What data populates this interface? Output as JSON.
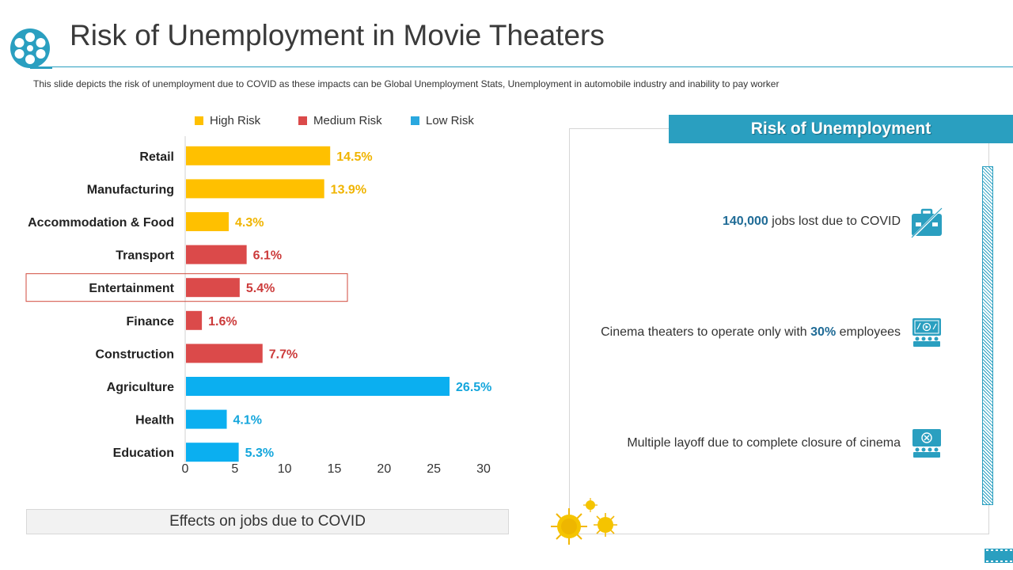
{
  "title": "Risk of Unemployment in Movie Theaters",
  "subtitle": "This slide depicts the risk of unemployment  due to COVID as these impacts can be Global Unemployment Stats, Unemployment in automobile industry and inability to pay worker",
  "legend": [
    {
      "label": "High Risk",
      "color": "#FFC000"
    },
    {
      "label": "Medium Risk",
      "color": "#DB4A4A"
    },
    {
      "label": "Low Risk",
      "color": "#2AA8DF"
    }
  ],
  "chart_data": {
    "type": "bar",
    "orientation": "horizontal",
    "categories": [
      "Retail",
      "Manufacturing",
      "Accommodation & Food",
      "Transport",
      "Entertainment",
      "Finance",
      "Construction",
      "Agriculture",
      "Health",
      "Education"
    ],
    "values": [
      14.5,
      13.9,
      4.3,
      6.1,
      5.4,
      1.6,
      7.7,
      26.5,
      4.1,
      5.3
    ],
    "value_labels": [
      "14.5%",
      "13.9%",
      "4.3%",
      "6.1%",
      "5.4%",
      "1.6%",
      "7.7%",
      "26.5%",
      "4.1%",
      "5.3%"
    ],
    "risk": [
      "High Risk",
      "High Risk",
      "High Risk",
      "Medium Risk",
      "Medium Risk",
      "Medium Risk",
      "Medium Risk",
      "Low Risk",
      "Low Risk",
      "Low Risk"
    ],
    "colors": [
      "#FFC000",
      "#FFC000",
      "#FFC000",
      "#DB4A4A",
      "#DB4A4A",
      "#DB4A4A",
      "#DB4A4A",
      "#0BAFF0",
      "#0BAFF0",
      "#0BAFF0"
    ],
    "label_colors": [
      "#F0B400",
      "#F0B400",
      "#F0B400",
      "#CC3B3B",
      "#CC3B3B",
      "#CC3B3B",
      "#CC3B3B",
      "#14A6DC",
      "#14A6DC",
      "#14A6DC"
    ],
    "highlighted": "Entertainment",
    "xlim": [
      0,
      30
    ],
    "xticks": [
      "0",
      "5",
      "10",
      "15",
      "20",
      "25",
      "30"
    ],
    "xlabel": "Effects on jobs due to COVID"
  },
  "panel": {
    "header": "Risk of Unemployment",
    "items": [
      {
        "highlight": "140,000",
        "text": " jobs lost due to COVID",
        "icon": "briefcase-icon"
      },
      {
        "prefix": "Cinema theaters to operate only with ",
        "highlight": "30%",
        "suffix": " employees",
        "icon": "cinema-screen-icon"
      },
      {
        "text": "Multiple layoff due to complete closure of cinema",
        "icon": "cinema-closed-icon"
      }
    ]
  },
  "accent_color": "#2A9FC0"
}
